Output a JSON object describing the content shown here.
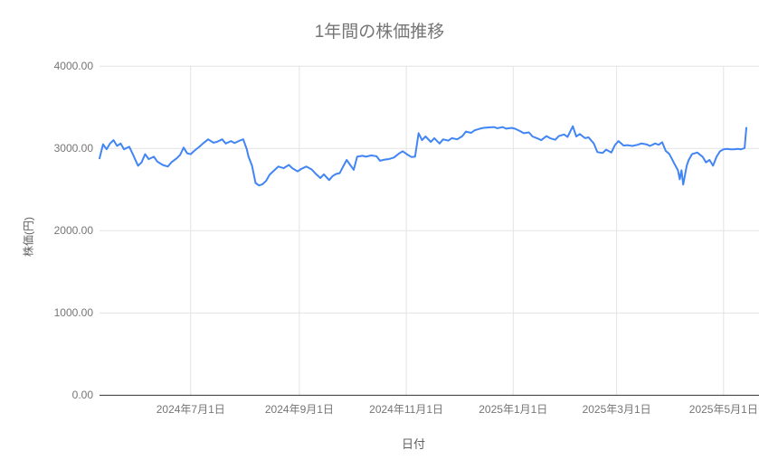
{
  "chart_data": {
    "type": "line",
    "title": "1年間の株価推移",
    "xlabel": "日付",
    "ylabel": "株価(円)",
    "ylim": [
      0,
      4000
    ],
    "grid": true,
    "legend": false,
    "line_color": "#4285f4",
    "y_ticks": [
      {
        "value": 0,
        "label": "0.00"
      },
      {
        "value": 1000,
        "label": "1000.00"
      },
      {
        "value": 2000,
        "label": "2000.00"
      },
      {
        "value": 3000,
        "label": "3000.00"
      },
      {
        "value": 4000,
        "label": "4000.00"
      }
    ],
    "x_ticks": [
      {
        "date": "2024-07-01",
        "label": "2024年7月1日"
      },
      {
        "date": "2024-09-01",
        "label": "2024年9月1日"
      },
      {
        "date": "2024-11-01",
        "label": "2024年11月1日"
      },
      {
        "date": "2025-01-01",
        "label": "2025年1月1日"
      },
      {
        "date": "2025-03-01",
        "label": "2025年3月1日"
      },
      {
        "date": "2025-05-01",
        "label": "2025年5月1日"
      }
    ],
    "x_range": [
      "2024-05-10",
      "2025-05-14"
    ],
    "series": [
      {
        "points": [
          [
            "2024-05-10",
            2880
          ],
          [
            "2024-05-12",
            3050
          ],
          [
            "2024-05-14",
            2990
          ],
          [
            "2024-05-16",
            3060
          ],
          [
            "2024-05-18",
            3100
          ],
          [
            "2024-05-20",
            3030
          ],
          [
            "2024-05-22",
            3060
          ],
          [
            "2024-05-24",
            2990
          ],
          [
            "2024-05-27",
            3020
          ],
          [
            "2024-05-29",
            2930
          ],
          [
            "2024-06-01",
            2790
          ],
          [
            "2024-06-03",
            2830
          ],
          [
            "2024-06-05",
            2930
          ],
          [
            "2024-06-07",
            2870
          ],
          [
            "2024-06-10",
            2900
          ],
          [
            "2024-06-12",
            2840
          ],
          [
            "2024-06-15",
            2800
          ],
          [
            "2024-06-18",
            2780
          ],
          [
            "2024-06-20",
            2830
          ],
          [
            "2024-06-23",
            2880
          ],
          [
            "2024-06-25",
            2920
          ],
          [
            "2024-06-27",
            3010
          ],
          [
            "2024-06-29",
            2940
          ],
          [
            "2024-07-01",
            2930
          ],
          [
            "2024-07-03",
            2970
          ],
          [
            "2024-07-06",
            3020
          ],
          [
            "2024-07-08",
            3060
          ],
          [
            "2024-07-11",
            3110
          ],
          [
            "2024-07-14",
            3070
          ],
          [
            "2024-07-16",
            3080
          ],
          [
            "2024-07-19",
            3110
          ],
          [
            "2024-07-21",
            3060
          ],
          [
            "2024-07-24",
            3090
          ],
          [
            "2024-07-26",
            3065
          ],
          [
            "2024-07-29",
            3095
          ],
          [
            "2024-07-31",
            3110
          ],
          [
            "2024-08-02",
            2990
          ],
          [
            "2024-08-03",
            2900
          ],
          [
            "2024-08-05",
            2790
          ],
          [
            "2024-08-07",
            2580
          ],
          [
            "2024-08-09",
            2550
          ],
          [
            "2024-08-11",
            2565
          ],
          [
            "2024-08-13",
            2605
          ],
          [
            "2024-08-15",
            2680
          ],
          [
            "2024-08-18",
            2740
          ],
          [
            "2024-08-20",
            2780
          ],
          [
            "2024-08-23",
            2760
          ],
          [
            "2024-08-26",
            2800
          ],
          [
            "2024-08-28",
            2760
          ],
          [
            "2024-08-31",
            2720
          ],
          [
            "2024-09-02",
            2750
          ],
          [
            "2024-09-05",
            2780
          ],
          [
            "2024-09-08",
            2745
          ],
          [
            "2024-09-10",
            2700
          ],
          [
            "2024-09-13",
            2640
          ],
          [
            "2024-09-15",
            2685
          ],
          [
            "2024-09-18",
            2615
          ],
          [
            "2024-09-20",
            2665
          ],
          [
            "2024-09-22",
            2690
          ],
          [
            "2024-09-24",
            2700
          ],
          [
            "2024-09-26",
            2780
          ],
          [
            "2024-09-28",
            2860
          ],
          [
            "2024-09-30",
            2800
          ],
          [
            "2024-10-02",
            2740
          ],
          [
            "2024-10-04",
            2900
          ],
          [
            "2024-10-07",
            2910
          ],
          [
            "2024-10-09",
            2900
          ],
          [
            "2024-10-12",
            2915
          ],
          [
            "2024-10-15",
            2905
          ],
          [
            "2024-10-17",
            2850
          ],
          [
            "2024-10-20",
            2865
          ],
          [
            "2024-10-22",
            2870
          ],
          [
            "2024-10-25",
            2890
          ],
          [
            "2024-10-28",
            2940
          ],
          [
            "2024-10-30",
            2965
          ],
          [
            "2024-11-02",
            2920
          ],
          [
            "2024-11-04",
            2895
          ],
          [
            "2024-11-06",
            2900
          ],
          [
            "2024-11-08",
            3185
          ],
          [
            "2024-11-10",
            3100
          ],
          [
            "2024-11-12",
            3145
          ],
          [
            "2024-11-15",
            3080
          ],
          [
            "2024-11-17",
            3125
          ],
          [
            "2024-11-20",
            3060
          ],
          [
            "2024-11-22",
            3110
          ],
          [
            "2024-11-25",
            3095
          ],
          [
            "2024-11-27",
            3125
          ],
          [
            "2024-11-30",
            3110
          ],
          [
            "2024-12-03",
            3150
          ],
          [
            "2024-12-05",
            3205
          ],
          [
            "2024-12-08",
            3190
          ],
          [
            "2024-12-10",
            3220
          ],
          [
            "2024-12-13",
            3240
          ],
          [
            "2024-12-15",
            3250
          ],
          [
            "2024-12-18",
            3255
          ],
          [
            "2024-12-21",
            3260
          ],
          [
            "2024-12-23",
            3245
          ],
          [
            "2024-12-26",
            3260
          ],
          [
            "2024-12-28",
            3240
          ],
          [
            "2024-12-31",
            3250
          ],
          [
            "2025-01-02",
            3240
          ],
          [
            "2025-01-05",
            3210
          ],
          [
            "2025-01-07",
            3185
          ],
          [
            "2025-01-10",
            3195
          ],
          [
            "2025-01-12",
            3145
          ],
          [
            "2025-01-15",
            3120
          ],
          [
            "2025-01-17",
            3100
          ],
          [
            "2025-01-20",
            3150
          ],
          [
            "2025-01-22",
            3125
          ],
          [
            "2025-01-25",
            3105
          ],
          [
            "2025-01-27",
            3150
          ],
          [
            "2025-01-30",
            3170
          ],
          [
            "2025-02-01",
            3140
          ],
          [
            "2025-02-04",
            3270
          ],
          [
            "2025-02-06",
            3145
          ],
          [
            "2025-02-08",
            3175
          ],
          [
            "2025-02-11",
            3125
          ],
          [
            "2025-02-13",
            3135
          ],
          [
            "2025-02-16",
            3060
          ],
          [
            "2025-02-18",
            2955
          ],
          [
            "2025-02-21",
            2945
          ],
          [
            "2025-02-23",
            2985
          ],
          [
            "2025-02-26",
            2950
          ],
          [
            "2025-02-28",
            3040
          ],
          [
            "2025-03-02",
            3090
          ],
          [
            "2025-03-05",
            3035
          ],
          [
            "2025-03-07",
            3040
          ],
          [
            "2025-03-10",
            3030
          ],
          [
            "2025-03-13",
            3045
          ],
          [
            "2025-03-15",
            3060
          ],
          [
            "2025-03-18",
            3050
          ],
          [
            "2025-03-20",
            3030
          ],
          [
            "2025-03-23",
            3060
          ],
          [
            "2025-03-25",
            3045
          ],
          [
            "2025-03-27",
            3075
          ],
          [
            "2025-03-29",
            2970
          ],
          [
            "2025-03-31",
            2935
          ],
          [
            "2025-04-01",
            2895
          ],
          [
            "2025-04-03",
            2810
          ],
          [
            "2025-04-05",
            2735
          ],
          [
            "2025-04-06",
            2625
          ],
          [
            "2025-04-07",
            2735
          ],
          [
            "2025-04-08",
            2560
          ],
          [
            "2025-04-10",
            2790
          ],
          [
            "2025-04-11",
            2855
          ],
          [
            "2025-04-13",
            2930
          ],
          [
            "2025-04-16",
            2950
          ],
          [
            "2025-04-19",
            2900
          ],
          [
            "2025-04-21",
            2830
          ],
          [
            "2025-04-23",
            2860
          ],
          [
            "2025-04-25",
            2790
          ],
          [
            "2025-04-27",
            2900
          ],
          [
            "2025-04-29",
            2965
          ],
          [
            "2025-05-01",
            2990
          ],
          [
            "2025-05-03",
            2995
          ],
          [
            "2025-05-05",
            2990
          ],
          [
            "2025-05-07",
            2990
          ],
          [
            "2025-05-09",
            2995
          ],
          [
            "2025-05-11",
            2990
          ],
          [
            "2025-05-13",
            3005
          ],
          [
            "2025-05-14",
            3250
          ]
        ]
      }
    ]
  },
  "colors": {
    "background": "#ffffff",
    "line": "#4285f4",
    "gridline": "#e3e3e3",
    "baseline": "#333333",
    "tick_label": "#757575",
    "title": "#757575",
    "axis_title": "#616161"
  }
}
